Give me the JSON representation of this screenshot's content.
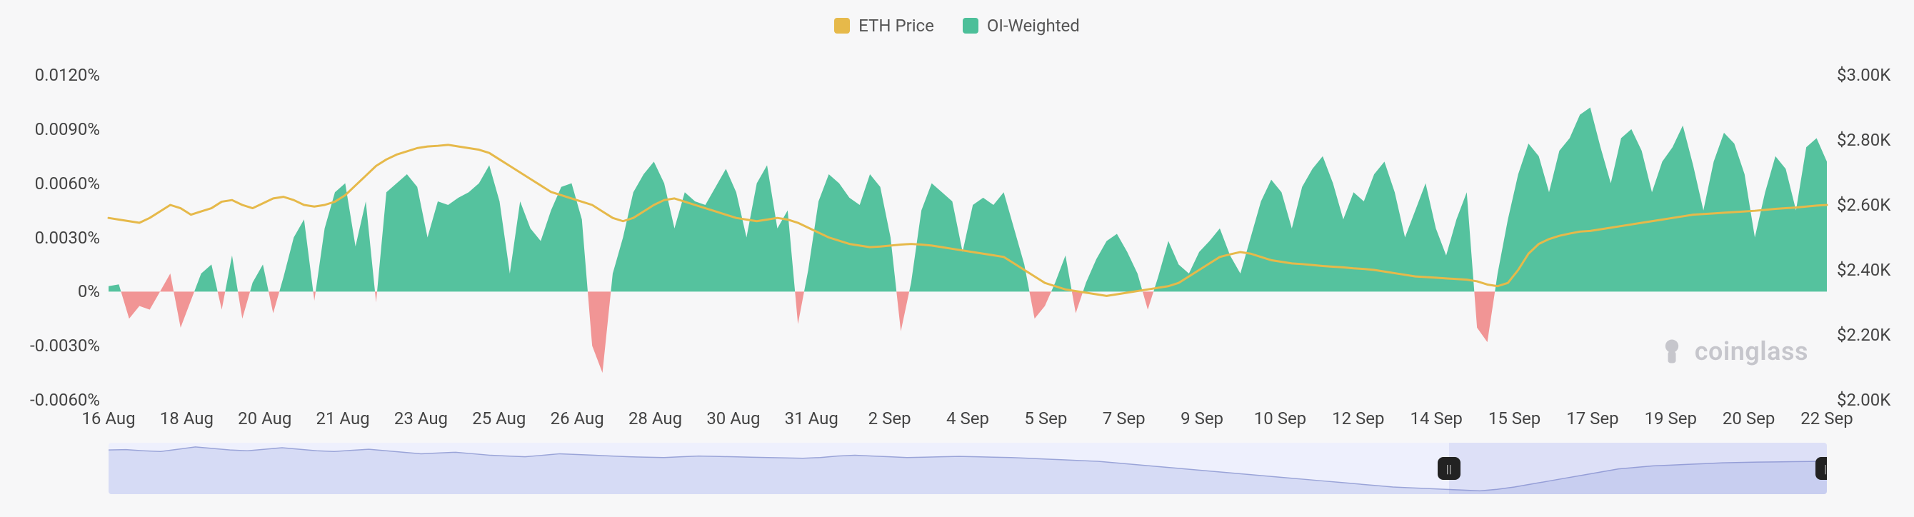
{
  "legend": [
    {
      "label": "ETH Price",
      "color": "#e6b94a"
    },
    {
      "label": "OI-Weighted",
      "color": "#4cbf99"
    }
  ],
  "watermark": "coinglass",
  "chart": {
    "type": "area+line",
    "background_color": "#f7f7f8",
    "label_fontsize": 24,
    "left_axis": {
      "min": -0.006,
      "max": 0.012,
      "ticks": [
        {
          "v": -0.006,
          "label": "-0.0060%"
        },
        {
          "v": -0.003,
          "label": "-0.0030%"
        },
        {
          "v": 0.0,
          "label": "0%"
        },
        {
          "v": 0.003,
          "label": "0.0030%"
        },
        {
          "v": 0.006,
          "label": "0.0060%"
        },
        {
          "v": 0.009,
          "label": "0.0090%"
        },
        {
          "v": 0.012,
          "label": "0.0120%"
        }
      ]
    },
    "right_axis": {
      "min": 2000,
      "max": 3000,
      "ticks": [
        {
          "v": 2000,
          "label": "$2.00K"
        },
        {
          "v": 2200,
          "label": "$2.20K"
        },
        {
          "v": 2400,
          "label": "$2.40K"
        },
        {
          "v": 2600,
          "label": "$2.60K"
        },
        {
          "v": 2800,
          "label": "$2.80K"
        },
        {
          "v": 3000,
          "label": "$3.00K"
        }
      ]
    },
    "x_ticks": [
      "16 Aug",
      "18 Aug",
      "20 Aug",
      "21 Aug",
      "23 Aug",
      "25 Aug",
      "26 Aug",
      "28 Aug",
      "30 Aug",
      "31 Aug",
      "2 Sep",
      "4 Sep",
      "5 Sep",
      "7 Sep",
      "9 Sep",
      "10 Sep",
      "12 Sep",
      "14 Sep",
      "15 Sep",
      "17 Sep",
      "19 Sep",
      "20 Sep",
      "22 Sep"
    ],
    "oi_weighted": {
      "pos_color": "#4cbf99",
      "neg_color": "#f08f8f",
      "values": [
        0.0003,
        0.0004,
        -0.0015,
        -0.0008,
        -0.001,
        0.0,
        0.001,
        -0.002,
        -0.0005,
        0.001,
        0.0015,
        -0.001,
        0.002,
        -0.0015,
        0.0005,
        0.0015,
        -0.0012,
        0.0008,
        0.003,
        0.004,
        -0.0005,
        0.0035,
        0.0055,
        0.006,
        0.0025,
        0.005,
        -0.0006,
        0.0055,
        0.006,
        0.0065,
        0.0058,
        0.003,
        0.005,
        0.0048,
        0.0052,
        0.0055,
        0.006,
        0.007,
        0.005,
        0.001,
        0.005,
        0.0035,
        0.0028,
        0.0045,
        0.0058,
        0.006,
        0.004,
        -0.003,
        -0.0045,
        0.001,
        0.003,
        0.0055,
        0.0065,
        0.0072,
        0.006,
        0.0035,
        0.0055,
        0.005,
        0.0048,
        0.0058,
        0.0068,
        0.0055,
        0.003,
        0.006,
        0.007,
        0.0035,
        0.0045,
        -0.0018,
        0.0012,
        0.005,
        0.0065,
        0.006,
        0.0052,
        0.0048,
        0.0065,
        0.0058,
        0.003,
        -0.0022,
        0.0005,
        0.0045,
        0.006,
        0.0055,
        0.005,
        0.0022,
        0.0048,
        0.0052,
        0.0048,
        0.0055,
        0.0035,
        0.0015,
        -0.0015,
        -0.0008,
        0.0005,
        0.002,
        -0.0012,
        0.0005,
        0.0018,
        0.0028,
        0.0032,
        0.0022,
        0.001,
        -0.001,
        0.0008,
        0.0028,
        0.0015,
        0.001,
        0.0022,
        0.0028,
        0.0035,
        0.002,
        0.001,
        0.003,
        0.005,
        0.0062,
        0.0055,
        0.0035,
        0.0058,
        0.0068,
        0.0075,
        0.006,
        0.004,
        0.0055,
        0.005,
        0.0065,
        0.0072,
        0.0055,
        0.003,
        0.0045,
        0.006,
        0.0035,
        0.002,
        0.004,
        0.0055,
        -0.002,
        -0.0028,
        0.001,
        0.004,
        0.0065,
        0.0082,
        0.0075,
        0.0055,
        0.0078,
        0.0085,
        0.0098,
        0.0102,
        0.008,
        0.006,
        0.0085,
        0.009,
        0.0078,
        0.0055,
        0.0072,
        0.008,
        0.0092,
        0.007,
        0.0045,
        0.0072,
        0.0088,
        0.0082,
        0.0065,
        0.003,
        0.0055,
        0.0075,
        0.0068,
        0.0045,
        0.008,
        0.0085,
        0.0072
      ]
    },
    "eth_price": {
      "color": "#e6b94a",
      "line_width": 3,
      "values": [
        2560,
        2555,
        2550,
        2545,
        2560,
        2580,
        2600,
        2590,
        2570,
        2580,
        2590,
        2610,
        2615,
        2600,
        2590,
        2605,
        2620,
        2625,
        2615,
        2600,
        2595,
        2600,
        2610,
        2630,
        2660,
        2690,
        2720,
        2740,
        2755,
        2765,
        2775,
        2780,
        2782,
        2785,
        2780,
        2775,
        2770,
        2760,
        2740,
        2720,
        2700,
        2680,
        2660,
        2640,
        2630,
        2620,
        2610,
        2600,
        2580,
        2560,
        2550,
        2560,
        2580,
        2600,
        2615,
        2620,
        2610,
        2600,
        2590,
        2580,
        2570,
        2560,
        2555,
        2550,
        2555,
        2560,
        2555,
        2545,
        2530,
        2515,
        2500,
        2490,
        2480,
        2475,
        2470,
        2472,
        2475,
        2478,
        2480,
        2478,
        2475,
        2470,
        2465,
        2460,
        2455,
        2450,
        2445,
        2440,
        2420,
        2400,
        2380,
        2360,
        2350,
        2340,
        2335,
        2330,
        2325,
        2320,
        2325,
        2330,
        2335,
        2340,
        2345,
        2350,
        2360,
        2380,
        2400,
        2420,
        2440,
        2448,
        2455,
        2450,
        2440,
        2430,
        2425,
        2420,
        2418,
        2415,
        2412,
        2410,
        2408,
        2405,
        2403,
        2400,
        2395,
        2390,
        2385,
        2380,
        2378,
        2376,
        2374,
        2372,
        2370,
        2365,
        2355,
        2350,
        2360,
        2400,
        2450,
        2480,
        2495,
        2505,
        2512,
        2518,
        2520,
        2525,
        2530,
        2535,
        2540,
        2545,
        2550,
        2555,
        2560,
        2565,
        2570,
        2572,
        2574,
        2576,
        2578,
        2580,
        2582,
        2585,
        2588,
        2590,
        2592,
        2595,
        2598,
        2600
      ]
    },
    "brush": {
      "bg_color": "#eef0fd",
      "line_color": "#9aa4d8",
      "fill_color": "#d6dbf5",
      "sel_color": "rgba(120,130,210,0.18)",
      "handle_color": "#222222",
      "values": [
        2750,
        2755,
        2740,
        2730,
        2760,
        2790,
        2770,
        2750,
        2740,
        2760,
        2780,
        2760,
        2740,
        2730,
        2745,
        2760,
        2740,
        2720,
        2700,
        2710,
        2720,
        2700,
        2680,
        2670,
        2660,
        2680,
        2700,
        2690,
        2680,
        2670,
        2660,
        2655,
        2650,
        2660,
        2670,
        2665,
        2660,
        2655,
        2650,
        2645,
        2640,
        2650,
        2670,
        2680,
        2670,
        2660,
        2650,
        2655,
        2660,
        2665,
        2660,
        2655,
        2650,
        2640,
        2630,
        2620,
        2610,
        2600,
        2580,
        2560,
        2540,
        2520,
        2500,
        2480,
        2460,
        2440,
        2420,
        2400,
        2380,
        2360,
        2340,
        2320,
        2300,
        2280,
        2260,
        2250,
        2240,
        2230,
        2220,
        2210,
        2230,
        2260,
        2300,
        2340,
        2380,
        2420,
        2460,
        2500,
        2520,
        2540,
        2550,
        2560,
        2570,
        2580,
        2585,
        2590,
        2592,
        2595,
        2598,
        2600
      ],
      "sel_start": 0.78,
      "sel_end": 1.0
    }
  }
}
